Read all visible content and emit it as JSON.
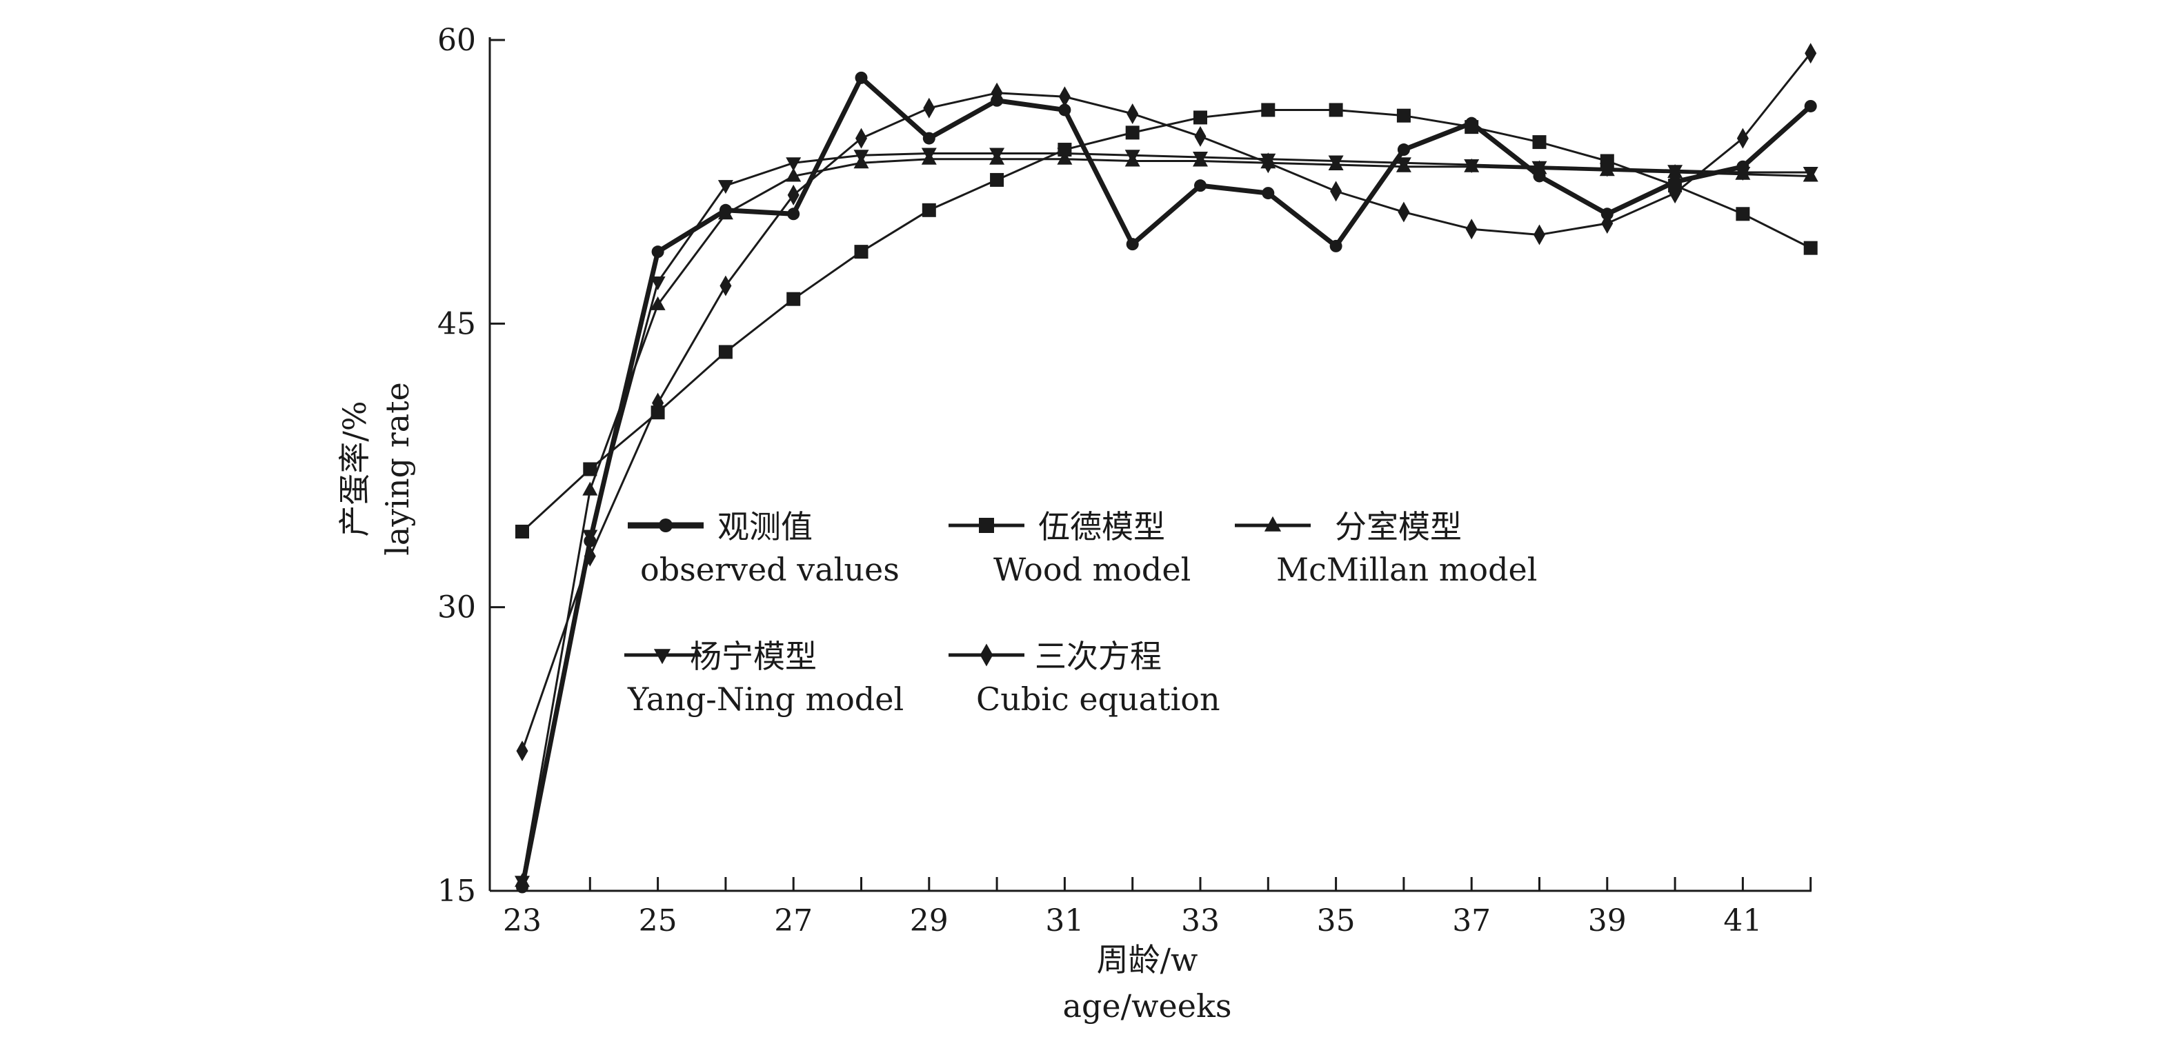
{
  "chart_data": {
    "type": "line",
    "x": [
      23,
      24,
      25,
      26,
      27,
      28,
      29,
      30,
      31,
      32,
      33,
      34,
      35,
      36,
      37,
      38,
      39,
      40,
      41,
      42
    ],
    "xticks": [
      "23",
      "25",
      "27",
      "29",
      "31",
      "33",
      "35",
      "37",
      "39",
      "41"
    ],
    "yticks": [
      "15",
      "30",
      "45",
      "60"
    ],
    "xlim": [
      22.5,
      42
    ],
    "ylim": [
      15,
      60
    ],
    "xlabel_cn": "周龄/w",
    "xlabel_en": "age/weeks",
    "ylabel_cn": "产蛋率/%",
    "ylabel_en": "laying rate",
    "legend_position": "center",
    "grid": false,
    "line_color": "#1a1a1a",
    "series": [
      {
        "name_cn": "观测值",
        "name_en": "observed values",
        "marker": "circle",
        "width": 7,
        "values": [
          15.2,
          33.5,
          48.8,
          51.0,
          50.8,
          58.0,
          54.8,
          56.8,
          56.3,
          49.2,
          52.3,
          51.9,
          49.1,
          54.2,
          55.6,
          52.8,
          50.8,
          52.5,
          53.3,
          56.5
        ]
      },
      {
        "name_cn": "伍德模型",
        "name_en": "Wood model",
        "marker": "square",
        "width": 3,
        "values": [
          34.0,
          37.3,
          40.3,
          43.5,
          46.3,
          48.8,
          51.0,
          52.6,
          54.2,
          55.1,
          55.9,
          56.3,
          56.3,
          56.0,
          55.4,
          54.6,
          53.6,
          52.3,
          50.8,
          49.0
        ]
      },
      {
        "name_cn": "分室模型",
        "name_en": "McMillan model",
        "marker": "triangle-up",
        "width": 3,
        "values": [
          15.5,
          36.2,
          46.0,
          50.8,
          52.8,
          53.5,
          53.7,
          53.7,
          53.7,
          53.6,
          53.6,
          53.5,
          53.4,
          53.3,
          53.3,
          53.2,
          53.1,
          53.0,
          52.9,
          52.8
        ]
      },
      {
        "name_cn": "杨宁模型",
        "name_en": "Yang-Ning model",
        "marker": "triangle-down",
        "width": 3,
        "values": [
          15.5,
          33.8,
          47.2,
          52.3,
          53.5,
          53.9,
          54.0,
          54.0,
          54.0,
          53.9,
          53.8,
          53.7,
          53.6,
          53.5,
          53.4,
          53.3,
          53.2,
          53.1,
          53.0,
          53.0
        ]
      },
      {
        "name_cn": "三次方程",
        "name_en": "Cubic equation",
        "marker": "diamond",
        "width": 3,
        "values": [
          22.4,
          32.7,
          40.8,
          47.0,
          51.8,
          54.8,
          56.4,
          57.2,
          57.0,
          56.1,
          54.9,
          53.5,
          52.0,
          50.9,
          50.0,
          49.7,
          50.3,
          51.9,
          54.8,
          59.3
        ]
      }
    ]
  }
}
